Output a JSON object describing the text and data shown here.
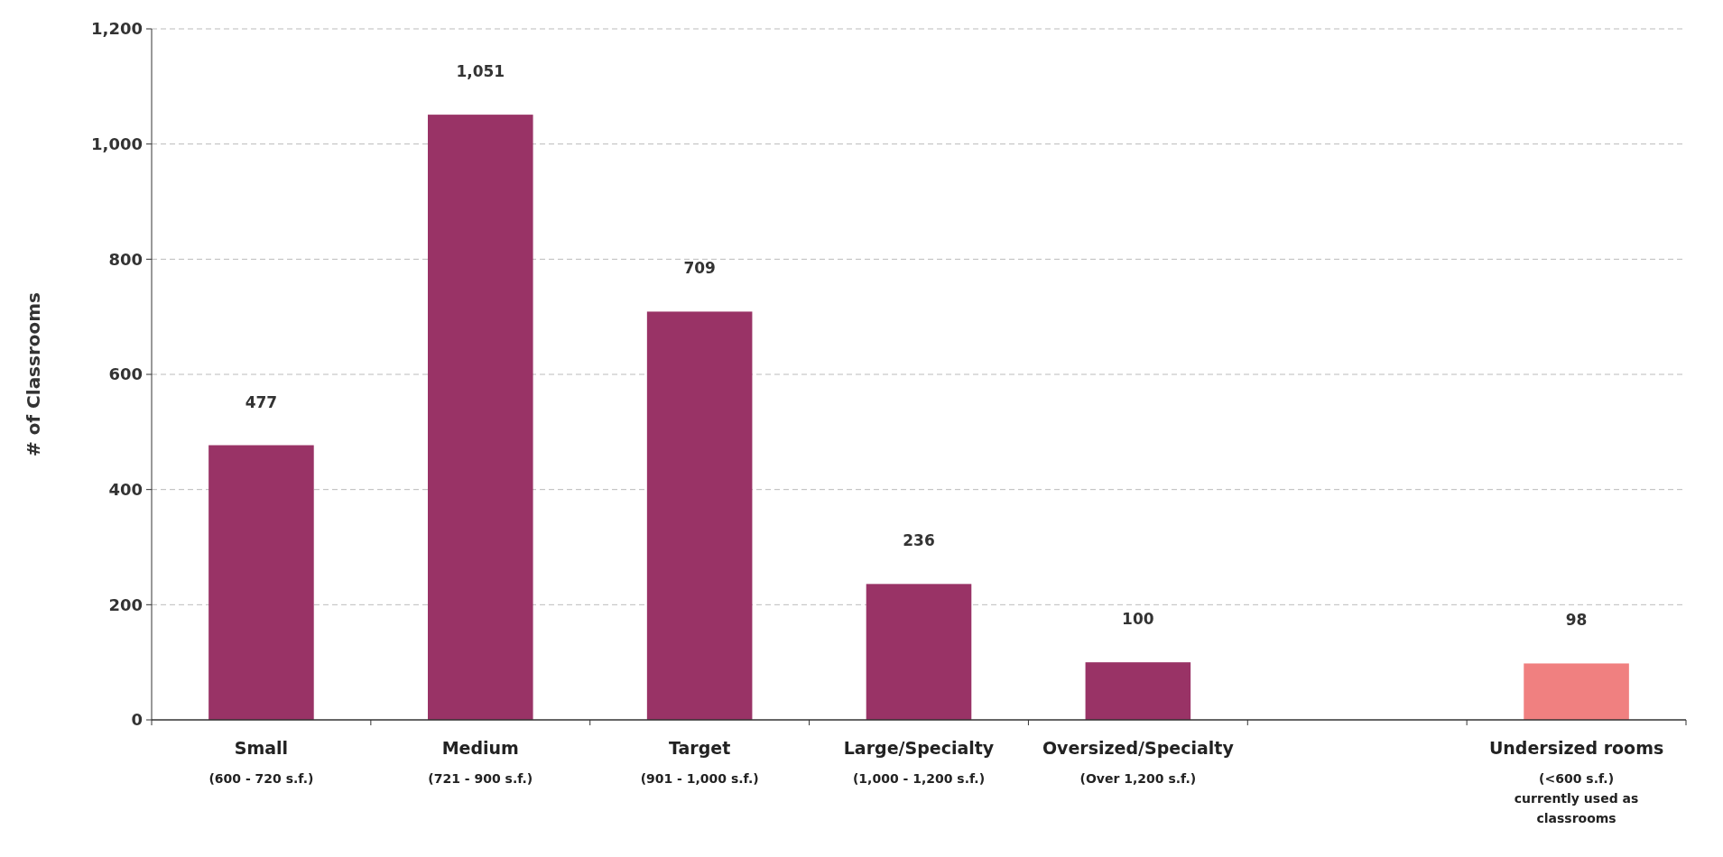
{
  "chart_data": {
    "type": "bar",
    "ylabel": "# of Classrooms",
    "categories": [
      "Small\n(600 - 720 s.f.)",
      "Medium\n(721 - 900 s.f.)",
      "Target\n(901 - 1,000 s.f.)",
      "Large/Specialty\n(1,000 - 1,200 s.f.)",
      "Oversized/Specialty\n(Over 1,200 s.f.)",
      null,
      "Undersized rooms\n(<600 s.f.)\ncurrently used as\nclassrooms"
    ],
    "values": [
      477,
      1051,
      709,
      236,
      100,
      null,
      98
    ],
    "value_labels": [
      "477",
      "1,051",
      "709",
      "236",
      "100",
      null,
      "98"
    ],
    "colors": [
      "#993366",
      "#993366",
      "#993366",
      "#993366",
      "#993366",
      null,
      "#f08080"
    ],
    "ylim": [
      0,
      1200
    ],
    "yticks": [
      0,
      200,
      400,
      600,
      800,
      {
        "value": 1000,
        "label": "1,000"
      },
      {
        "value": 1200,
        "label": "1,200"
      }
    ],
    "grid": "y"
  }
}
